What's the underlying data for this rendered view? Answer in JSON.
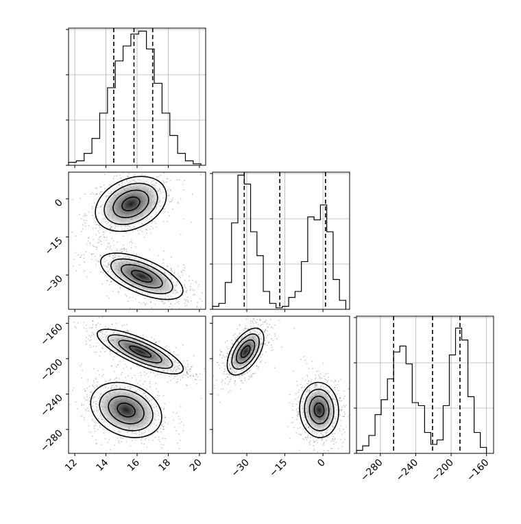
{
  "chart_data": {
    "type": "corner",
    "parameters": [
      {
        "ticks": [
          12,
          14,
          16,
          18,
          20
        ],
        "tick_labels": [
          "12",
          "14",
          "16",
          "18",
          "20"
        ],
        "range": [
          11.6,
          20.4
        ]
      },
      {
        "ticks": [
          -30,
          -15,
          0
        ],
        "tick_labels": [
          "−30",
          "−15",
          "0"
        ],
        "range": [
          -43.5,
          10.5
        ]
      },
      {
        "ticks": [
          -280,
          -240,
          -200,
          -160
        ],
        "tick_labels": [
          "−280",
          "−240",
          "−200",
          "−160"
        ],
        "range": [
          -307,
          -152
        ]
      }
    ],
    "marginals": [
      {
        "param": 0,
        "bin_edges": [
          11.6,
          12.1,
          12.6,
          13.1,
          13.6,
          14.1,
          14.6,
          15.1,
          15.6,
          16.1,
          16.6,
          17.1,
          17.6,
          18.1,
          18.6,
          19.1,
          19.6,
          20.1
        ],
        "counts": [
          2,
          3,
          8,
          18,
          35,
          52,
          70,
          80,
          88,
          90,
          78,
          55,
          35,
          20,
          8,
          3,
          1
        ],
        "quantiles": [
          14.5,
          15.8,
          17.0
        ],
        "ymax": 92
      },
      {
        "param": 1,
        "bin_edges": [
          -43.5,
          -41.0,
          -38.5,
          -36.0,
          -33.5,
          -31.0,
          -28.5,
          -26.0,
          -23.5,
          -21.0,
          -18.5,
          -16.0,
          -13.5,
          -11.0,
          -8.5,
          -6.0,
          -3.5,
          -1.0,
          1.5,
          4.0,
          6.5,
          9.0
        ],
        "counts": [
          2,
          4,
          18,
          58,
          90,
          84,
          52,
          36,
          12,
          4,
          1,
          2,
          8,
          12,
          32,
          62,
          60,
          70,
          52,
          20,
          6
        ],
        "quantiles": [
          -31.0,
          -17.0,
          1.0
        ],
        "ymax": 92
      },
      {
        "param": 2,
        "bin_edges": [
          -307,
          -300,
          -293,
          -286,
          -279,
          -272,
          -265,
          -258,
          -251,
          -244,
          -237,
          -230,
          -223,
          -216,
          -209,
          -202,
          -195,
          -188,
          -181,
          -174,
          -167,
          -160
        ],
        "counts": [
          2,
          5,
          12,
          26,
          36,
          50,
          68,
          72,
          60,
          34,
          32,
          14,
          6,
          9,
          32,
          66,
          84,
          76,
          38,
          14,
          4
        ],
        "quantiles": [
          -265.0,
          -221.0,
          -190.0
        ],
        "ymax": 92
      }
    ],
    "joint": [
      {
        "x": 0,
        "y": 1,
        "modes": [
          {
            "cx": 15.6,
            "cy": -2.0,
            "sx": 0.95,
            "sy": 4.5,
            "rho": 0.3,
            "n": 750
          },
          {
            "cx": 16.3,
            "cy": -30.5,
            "sx": 1.1,
            "sy": 3.8,
            "rho": -0.62,
            "n": 750
          }
        ]
      },
      {
        "x": 0,
        "y": 2,
        "modes": [
          {
            "cx": 16.2,
            "cy": -192.0,
            "sx": 1.15,
            "sy": 10.5,
            "rho": -0.78,
            "n": 750
          },
          {
            "cx": 15.3,
            "cy": -258.0,
            "sx": 0.95,
            "sy": 13.0,
            "rho": -0.25,
            "n": 750
          }
        ]
      },
      {
        "x": 1,
        "y": 2,
        "modes": [
          {
            "cx": -30.5,
            "cy": -192.0,
            "sx": 3.0,
            "sy": 11.0,
            "rho": 0.55,
            "n": 750
          },
          {
            "cx": -1.5,
            "cy": -258.0,
            "sx": 3.2,
            "sy": 13.0,
            "rho": -0.05,
            "n": 750
          }
        ]
      }
    ]
  }
}
